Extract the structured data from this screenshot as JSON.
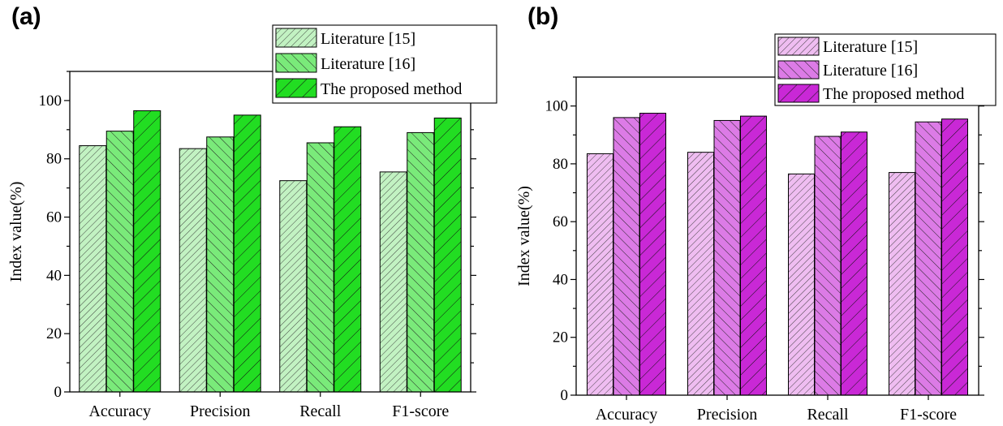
{
  "chart_data": [
    {
      "type": "bar",
      "panel_label": "(a)",
      "categories": [
        "Accuracy",
        "Precision",
        "Recall",
        "F1-score"
      ],
      "series": [
        {
          "name": "Literature [15]",
          "values": [
            84.5,
            83.5,
            72.5,
            75.5
          ],
          "color": "#c2f2c2"
        },
        {
          "name": "Literature [16]",
          "values": [
            89.5,
            87.5,
            85.5,
            89.0
          ],
          "color": "#7aea7a"
        },
        {
          "name": "The proposed method",
          "values": [
            96.5,
            95.0,
            91.0,
            94.0
          ],
          "color": "#22dd22"
        }
      ],
      "ylabel": "Index value(%)",
      "xlabel": "",
      "ylim": [
        0,
        110
      ],
      "yticks": [
        0,
        20,
        40,
        60,
        80,
        100
      ],
      "legend_position": "top-right"
    },
    {
      "type": "bar",
      "panel_label": "(b)",
      "categories": [
        "Accuracy",
        "Precision",
        "Recall",
        "F1-score"
      ],
      "series": [
        {
          "name": "Literature [15]",
          "values": [
            83.5,
            84.0,
            76.5,
            77.0
          ],
          "color": "#efbdf1"
        },
        {
          "name": "Literature [16]",
          "values": [
            96.0,
            95.0,
            89.5,
            94.5
          ],
          "color": "#dc7be6"
        },
        {
          "name": "The proposed method",
          "values": [
            97.5,
            96.5,
            91.0,
            95.5
          ],
          "color": "#c928d6"
        }
      ],
      "ylabel": "Index value(%)",
      "xlabel": "",
      "ylim": [
        0,
        110
      ],
      "yticks": [
        0,
        20,
        40,
        60,
        80,
        100
      ],
      "legend_position": "top-right"
    }
  ]
}
